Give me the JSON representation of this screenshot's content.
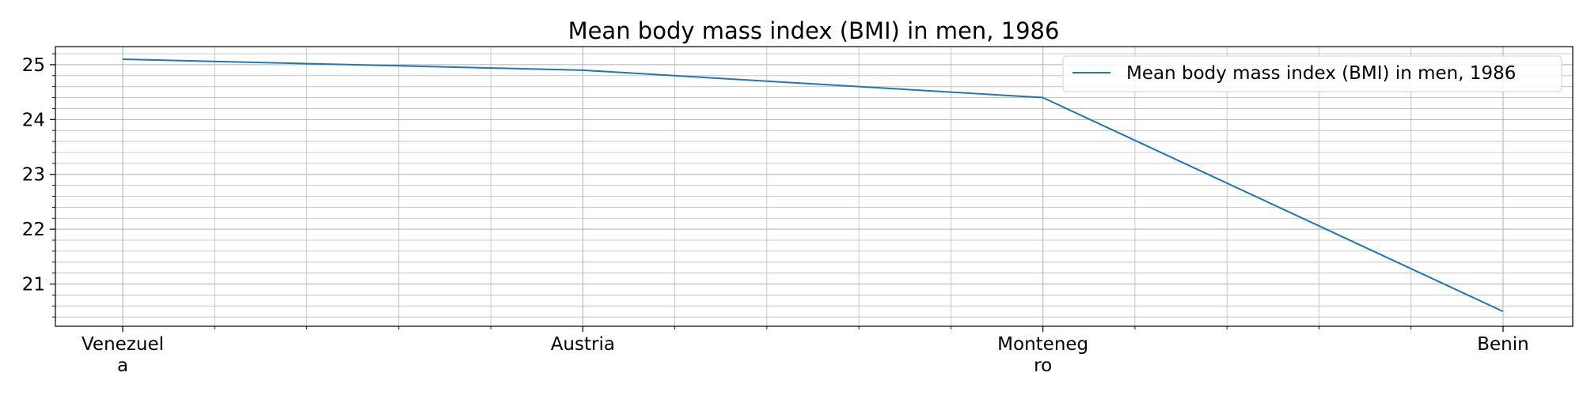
{
  "chart_data": {
    "type": "line",
    "title": "Mean body mass index (BMI) in men, 1986",
    "xlabel": "",
    "ylabel": "",
    "categories": [
      "Venezuela",
      "Austria",
      "Montenegro",
      "Benin"
    ],
    "category_tick_lines": [
      [
        "Venezuel",
        "a"
      ],
      [
        "Austria"
      ],
      [
        "Monteneg",
        "ro"
      ],
      [
        "Benin"
      ]
    ],
    "series": [
      {
        "name": "Mean body mass index (BMI) in men, 1986",
        "color": "#1f77b4",
        "values": [
          25.1,
          24.9,
          24.4,
          20.5
        ]
      }
    ],
    "yticks": [
      21,
      22,
      23,
      24,
      25
    ],
    "ylim": [
      20.23,
      25.33
    ],
    "grid": true,
    "minor_grid": true,
    "legend_position": "top-right"
  }
}
